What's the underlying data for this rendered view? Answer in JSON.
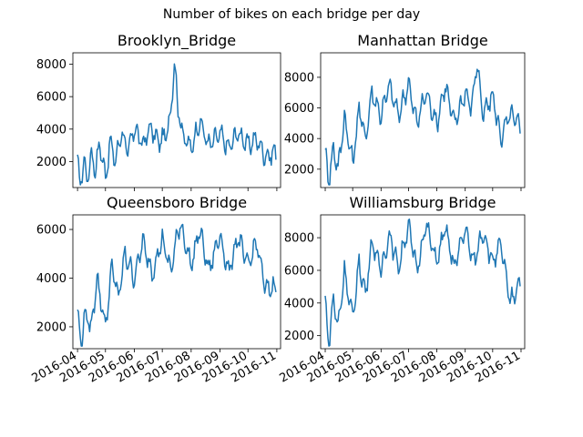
{
  "figure": {
    "title": "Number of bikes on each bridge per day"
  },
  "chart_data": [
    {
      "type": "line",
      "title": "Brooklyn_Bridge",
      "x_range": [
        "2016-04-01",
        "2016-10-31"
      ],
      "ylim": [
        400,
        8700
      ],
      "yticks": [
        2000,
        4000,
        6000,
        8000
      ],
      "xticks": [],
      "color": "#1f77b4",
      "series": [
        {
          "x": [],
          "y": []
        }
      ],
      "keypoints": [
        [
          "2016-04-01",
          1800
        ],
        [
          "2016-04-04",
          700
        ],
        [
          "2016-04-08",
          1900
        ],
        [
          "2016-04-12",
          1000
        ],
        [
          "2016-04-16",
          2500
        ],
        [
          "2016-04-20",
          1500
        ],
        [
          "2016-04-25",
          3100
        ],
        [
          "2016-05-01",
          1000
        ],
        [
          "2016-05-06",
          3200
        ],
        [
          "2016-05-12",
          2000
        ],
        [
          "2016-05-18",
          3900
        ],
        [
          "2016-05-25",
          2500
        ],
        [
          "2016-06-01",
          4100
        ],
        [
          "2016-06-10",
          3000
        ],
        [
          "2016-06-18",
          4100
        ],
        [
          "2016-06-27",
          3200
        ],
        [
          "2016-07-05",
          3600
        ],
        [
          "2016-07-10",
          5000
        ],
        [
          "2016-07-14",
          8200
        ],
        [
          "2016-07-18",
          5200
        ],
        [
          "2016-07-24",
          3500
        ],
        [
          "2016-08-01",
          2800
        ],
        [
          "2016-08-10",
          4500
        ],
        [
          "2016-08-20",
          3000
        ],
        [
          "2016-09-01",
          3700
        ],
        [
          "2016-09-10",
          2800
        ],
        [
          "2016-09-20",
          3800
        ],
        [
          "2016-10-01",
          3000
        ],
        [
          "2016-10-10",
          3400
        ],
        [
          "2016-10-20",
          2300
        ],
        [
          "2016-10-31",
          2600
        ]
      ]
    },
    {
      "type": "line",
      "title": "Manhattan Bridge",
      "x_range": [
        "2016-04-01",
        "2016-10-31"
      ],
      "ylim": [
        800,
        9600
      ],
      "yticks": [
        2000,
        4000,
        6000,
        8000
      ],
      "xticks": [],
      "color": "#1f77b4",
      "series": [
        {
          "x": [],
          "y": []
        }
      ],
      "keypoints": [
        [
          "2016-04-01",
          3100
        ],
        [
          "2016-04-05",
          1200
        ],
        [
          "2016-04-10",
          3400
        ],
        [
          "2016-04-15",
          2000
        ],
        [
          "2016-04-22",
          5400
        ],
        [
          "2016-05-01",
          2400
        ],
        [
          "2016-05-08",
          6000
        ],
        [
          "2016-05-15",
          4000
        ],
        [
          "2016-05-22",
          7000
        ],
        [
          "2016-06-01",
          5500
        ],
        [
          "2016-06-10",
          7500
        ],
        [
          "2016-06-20",
          5500
        ],
        [
          "2016-07-01",
          7600
        ],
        [
          "2016-07-10",
          5000
        ],
        [
          "2016-07-20",
          7000
        ],
        [
          "2016-08-01",
          5000
        ],
        [
          "2016-08-10",
          7500
        ],
        [
          "2016-08-20",
          5000
        ],
        [
          "2016-09-01",
          7000
        ],
        [
          "2016-09-08",
          6000
        ],
        [
          "2016-09-14",
          9100
        ],
        [
          "2016-09-20",
          5500
        ],
        [
          "2016-10-01",
          6800
        ],
        [
          "2016-10-10",
          4000
        ],
        [
          "2016-10-20",
          5600
        ],
        [
          "2016-10-31",
          4800
        ]
      ]
    },
    {
      "type": "line",
      "title": "Queensboro Bridge",
      "x_range": [
        "2016-04-01",
        "2016-10-31"
      ],
      "ylim": [
        1100,
        6600
      ],
      "yticks": [
        2000,
        4000,
        6000
      ],
      "xticks": [
        "2016-04",
        "2016-05",
        "2016-06",
        "2016-07",
        "2016-08",
        "2016-09",
        "2016-10",
        "2016-11"
      ],
      "color": "#1f77b4",
      "series": [
        {
          "x": [],
          "y": []
        }
      ],
      "keypoints": [
        [
          "2016-04-01",
          2500
        ],
        [
          "2016-04-05",
          1300
        ],
        [
          "2016-04-10",
          2700
        ],
        [
          "2016-04-15",
          1800
        ],
        [
          "2016-04-22",
          4000
        ],
        [
          "2016-05-01",
          2000
        ],
        [
          "2016-05-08",
          4500
        ],
        [
          "2016-05-15",
          3200
        ],
        [
          "2016-05-22",
          5000
        ],
        [
          "2016-06-01",
          4000
        ],
        [
          "2016-06-10",
          5500
        ],
        [
          "2016-06-20",
          4200
        ],
        [
          "2016-07-01",
          5600
        ],
        [
          "2016-07-10",
          4300
        ],
        [
          "2016-07-20",
          6300
        ],
        [
          "2016-08-01",
          4500
        ],
        [
          "2016-08-10",
          6000
        ],
        [
          "2016-08-20",
          4300
        ],
        [
          "2016-09-01",
          5800
        ],
        [
          "2016-09-10",
          4200
        ],
        [
          "2016-09-20",
          5700
        ],
        [
          "2016-10-01",
          4500
        ],
        [
          "2016-10-10",
          5500
        ],
        [
          "2016-10-20",
          3500
        ],
        [
          "2016-10-31",
          3700
        ]
      ]
    },
    {
      "type": "line",
      "title": "Williamsburg Bridge",
      "x_range": [
        "2016-04-01",
        "2016-10-31"
      ],
      "ylim": [
        1200,
        9400
      ],
      "yticks": [
        2000,
        4000,
        6000,
        8000
      ],
      "xticks": [
        "2016-04",
        "2016-05",
        "2016-06",
        "2016-07",
        "2016-08",
        "2016-09",
        "2016-10",
        "2016-11"
      ],
      "color": "#1f77b4",
      "series": [
        {
          "x": [],
          "y": []
        }
      ],
      "keypoints": [
        [
          "2016-04-01",
          4000
        ],
        [
          "2016-04-05",
          1500
        ],
        [
          "2016-04-10",
          4300
        ],
        [
          "2016-04-15",
          2500
        ],
        [
          "2016-04-22",
          6000
        ],
        [
          "2016-05-01",
          3000
        ],
        [
          "2016-05-08",
          6500
        ],
        [
          "2016-05-15",
          4500
        ],
        [
          "2016-05-22",
          7800
        ],
        [
          "2016-06-01",
          6000
        ],
        [
          "2016-06-10",
          8200
        ],
        [
          "2016-06-20",
          6200
        ],
        [
          "2016-07-01",
          8800
        ],
        [
          "2016-07-10",
          6000
        ],
        [
          "2016-07-20",
          8800
        ],
        [
          "2016-08-01",
          6500
        ],
        [
          "2016-08-10",
          8600
        ],
        [
          "2016-08-20",
          6200
        ],
        [
          "2016-09-01",
          8600
        ],
        [
          "2016-09-10",
          6400
        ],
        [
          "2016-09-20",
          8400
        ],
        [
          "2016-10-01",
          6500
        ],
        [
          "2016-10-10",
          7600
        ],
        [
          "2016-10-20",
          4000
        ],
        [
          "2016-10-31",
          5400
        ]
      ]
    }
  ]
}
